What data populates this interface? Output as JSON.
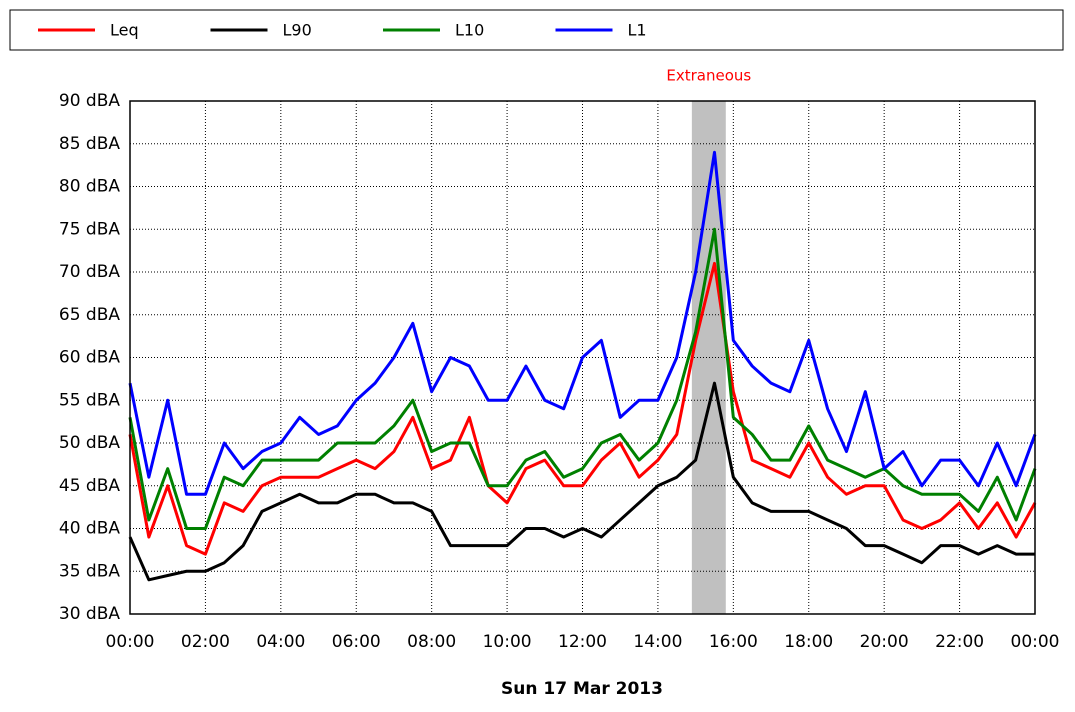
{
  "chart_data": {
    "type": "line",
    "xlabel": "Sun 17 Mar 2013",
    "x": [
      0,
      0.5,
      1,
      1.5,
      2,
      2.5,
      3,
      3.5,
      4,
      4.5,
      5,
      5.5,
      6,
      6.5,
      7,
      7.5,
      8,
      8.5,
      9,
      9.5,
      10,
      10.5,
      11,
      11.5,
      12,
      12.5,
      13,
      13.5,
      14,
      14.5,
      15,
      15.5,
      16,
      16.5,
      17,
      17.5,
      18,
      18.5,
      19,
      19.5,
      20,
      20.5,
      21,
      21.5,
      22,
      22.5,
      23,
      23.5,
      24
    ],
    "series": [
      {
        "name": "Leq",
        "color": "#ff0000",
        "values": [
          51,
          39,
          45,
          38,
          37,
          43,
          42,
          45,
          46,
          46,
          46,
          47,
          48,
          47,
          49,
          53,
          47,
          48,
          53,
          45,
          43,
          47,
          48,
          45,
          45,
          48,
          50,
          46,
          48,
          51,
          62,
          71,
          56,
          48,
          47,
          46,
          50,
          46,
          44,
          45,
          45,
          41,
          40,
          41,
          43,
          40,
          43,
          39,
          43
        ]
      },
      {
        "name": "L90",
        "color": "#000000",
        "values": [
          39,
          34,
          34.5,
          35,
          35,
          36,
          38,
          42,
          43,
          44,
          43,
          43,
          44,
          44,
          43,
          43,
          42,
          38,
          38,
          38,
          38,
          40,
          40,
          39,
          40,
          39,
          41,
          43,
          45,
          46,
          48,
          57,
          46,
          43,
          42,
          42,
          42,
          41,
          40,
          38,
          38,
          37,
          36,
          38,
          38,
          37,
          38,
          37,
          37
        ]
      },
      {
        "name": "L10",
        "color": "#008000",
        "values": [
          53,
          41,
          47,
          40,
          40,
          46,
          45,
          48,
          48,
          48,
          48,
          50,
          50,
          50,
          52,
          55,
          49,
          50,
          50,
          45,
          45,
          48,
          49,
          46,
          47,
          50,
          51,
          48,
          50,
          55,
          63,
          75,
          53,
          51,
          48,
          48,
          52,
          48,
          47,
          46,
          47,
          45,
          44,
          44,
          44,
          42,
          46,
          41,
          47
        ]
      },
      {
        "name": "L1",
        "color": "#0000ff",
        "values": [
          57,
          46,
          55,
          44,
          44,
          50,
          47,
          49,
          50,
          53,
          51,
          52,
          55,
          57,
          60,
          64,
          56,
          60,
          59,
          55,
          55,
          59,
          55,
          54,
          60,
          62,
          53,
          55,
          55,
          60,
          70,
          84,
          62,
          59,
          57,
          56,
          62,
          54,
          49,
          56,
          47,
          49,
          45,
          48,
          48,
          45,
          50,
          45,
          51
        ]
      }
    ],
    "xlim": [
      0,
      24
    ],
    "xticks": [
      {
        "value": 0,
        "label": "00:00"
      },
      {
        "value": 2,
        "label": "02:00"
      },
      {
        "value": 4,
        "label": "04:00"
      },
      {
        "value": 6,
        "label": "06:00"
      },
      {
        "value": 8,
        "label": "08:00"
      },
      {
        "value": 10,
        "label": "10:00"
      },
      {
        "value": 12,
        "label": "12:00"
      },
      {
        "value": 14,
        "label": "14:00"
      },
      {
        "value": 16,
        "label": "16:00"
      },
      {
        "value": 18,
        "label": "18:00"
      },
      {
        "value": 20,
        "label": "20:00"
      },
      {
        "value": 22,
        "label": "22:00"
      },
      {
        "value": 24,
        "label": "00:00"
      }
    ],
    "ylim": [
      30,
      90
    ],
    "yticks": [
      {
        "value": 30,
        "label": "30 dBA"
      },
      {
        "value": 35,
        "label": "35 dBA"
      },
      {
        "value": 40,
        "label": "40 dBA"
      },
      {
        "value": 45,
        "label": "45 dBA"
      },
      {
        "value": 50,
        "label": "50 dBA"
      },
      {
        "value": 55,
        "label": "55 dBA"
      },
      {
        "value": 60,
        "label": "60 dBA"
      },
      {
        "value": 65,
        "label": "65 dBA"
      },
      {
        "value": 70,
        "label": "70 dBA"
      },
      {
        "value": 75,
        "label": "75 dBA"
      },
      {
        "value": 80,
        "label": "80 dBA"
      },
      {
        "value": 85,
        "label": "85 dBA"
      },
      {
        "value": 90,
        "label": "90 dBA"
      }
    ],
    "grid": true,
    "annotations": [
      {
        "label": "Extraneous",
        "x0": 14.9,
        "x1": 15.8,
        "color": "#c0c0c0",
        "label_color": "#ff0000"
      }
    ]
  }
}
